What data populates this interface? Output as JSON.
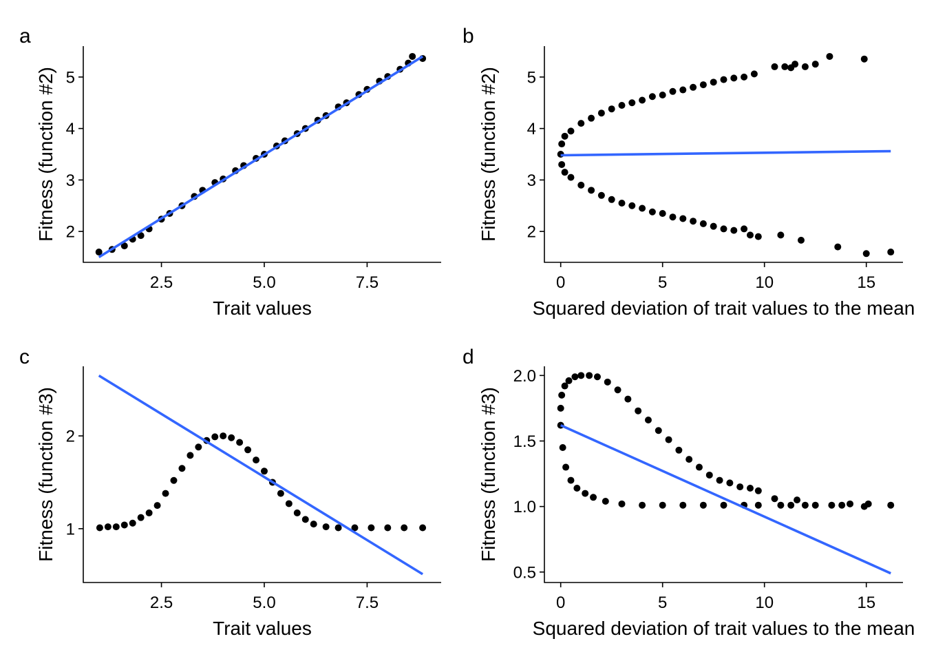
{
  "figure": {
    "colors": {
      "points": "#000000",
      "fit_line": "#3366FF",
      "background": "#FFFFFF"
    }
  },
  "chart_data": [
    {
      "panel": "a",
      "type": "scatter",
      "title": "",
      "xlabel": "Trait values",
      "ylabel": "Fitness (function #2)",
      "xlim": [
        0.6,
        9.3
      ],
      "ylim": [
        1.4,
        5.6
      ],
      "xticks": [
        2.5,
        5.0,
        7.5
      ],
      "xtick_labels": [
        "2.5",
        "5.0",
        "7.5"
      ],
      "yticks": [
        2,
        3,
        4,
        5
      ],
      "ytick_labels": [
        "2",
        "3",
        "4",
        "5"
      ],
      "grid": false,
      "points": [
        [
          0.98,
          1.6
        ],
        [
          1.3,
          1.65
        ],
        [
          1.6,
          1.72
        ],
        [
          1.8,
          1.85
        ],
        [
          2.0,
          1.92
        ],
        [
          2.2,
          2.05
        ],
        [
          2.5,
          2.24
        ],
        [
          2.7,
          2.35
        ],
        [
          3.0,
          2.5
        ],
        [
          3.3,
          2.68
        ],
        [
          3.5,
          2.8
        ],
        [
          3.8,
          2.95
        ],
        [
          4.0,
          3.02
        ],
        [
          4.3,
          3.18
        ],
        [
          4.5,
          3.28
        ],
        [
          4.8,
          3.42
        ],
        [
          5.0,
          3.5
        ],
        [
          5.3,
          3.66
        ],
        [
          5.5,
          3.76
        ],
        [
          5.8,
          3.9
        ],
        [
          6.0,
          4.0
        ],
        [
          6.3,
          4.16
        ],
        [
          6.5,
          4.25
        ],
        [
          6.8,
          4.42
        ],
        [
          7.0,
          4.5
        ],
        [
          7.3,
          4.66
        ],
        [
          7.5,
          4.76
        ],
        [
          7.8,
          4.92
        ],
        [
          8.0,
          5.01
        ],
        [
          8.3,
          5.15
        ],
        [
          8.5,
          5.27
        ],
        [
          8.6,
          5.4
        ],
        [
          8.85,
          5.36
        ]
      ],
      "fit_line": {
        "x": [
          0.98,
          8.85
        ],
        "y": [
          1.5,
          5.4
        ]
      }
    },
    {
      "panel": "b",
      "type": "scatter",
      "title": "",
      "xlabel": "Squared deviation of trait values to the mean",
      "ylabel": "Fitness (function #2)",
      "xlim": [
        -0.8,
        16.8
      ],
      "ylim": [
        1.4,
        5.6
      ],
      "xticks": [
        0,
        5,
        10,
        15
      ],
      "xtick_labels": [
        "0",
        "5",
        "10",
        "15"
      ],
      "yticks": [
        2,
        3,
        4,
        5
      ],
      "ytick_labels": [
        "2",
        "3",
        "4",
        "5"
      ],
      "grid": false,
      "points": [
        [
          0.0,
          3.5
        ],
        [
          0.05,
          3.7
        ],
        [
          0.05,
          3.3
        ],
        [
          0.2,
          3.85
        ],
        [
          0.2,
          3.15
        ],
        [
          0.5,
          3.95
        ],
        [
          0.5,
          3.05
        ],
        [
          1.0,
          4.1
        ],
        [
          1.0,
          2.9
        ],
        [
          1.5,
          4.2
        ],
        [
          1.5,
          2.8
        ],
        [
          2.0,
          4.3
        ],
        [
          2.0,
          2.7
        ],
        [
          2.5,
          4.38
        ],
        [
          2.5,
          2.62
        ],
        [
          3.0,
          4.45
        ],
        [
          3.0,
          2.55
        ],
        [
          3.5,
          4.5
        ],
        [
          3.5,
          2.5
        ],
        [
          4.0,
          4.55
        ],
        [
          4.0,
          2.45
        ],
        [
          4.5,
          4.62
        ],
        [
          4.5,
          2.38
        ],
        [
          5.0,
          4.65
        ],
        [
          5.0,
          2.35
        ],
        [
          5.5,
          4.72
        ],
        [
          5.5,
          2.28
        ],
        [
          6.0,
          4.75
        ],
        [
          6.0,
          2.25
        ],
        [
          6.5,
          4.8
        ],
        [
          6.5,
          2.2
        ],
        [
          7.0,
          4.85
        ],
        [
          7.0,
          2.15
        ],
        [
          7.5,
          4.9
        ],
        [
          7.5,
          2.1
        ],
        [
          8.0,
          4.95
        ],
        [
          8.0,
          2.05
        ],
        [
          8.5,
          4.98
        ],
        [
          8.5,
          2.02
        ],
        [
          9.0,
          5.0
        ],
        [
          9.0,
          2.05
        ],
        [
          9.5,
          5.06
        ],
        [
          9.3,
          1.93
        ],
        [
          9.7,
          1.9
        ],
        [
          10.5,
          5.2
        ],
        [
          11.0,
          5.2
        ],
        [
          11.3,
          5.18
        ],
        [
          11.5,
          5.25
        ],
        [
          12.0,
          5.2
        ],
        [
          12.5,
          5.25
        ],
        [
          13.2,
          5.4
        ],
        [
          10.8,
          1.93
        ],
        [
          11.8,
          1.83
        ],
        [
          13.6,
          1.7
        ],
        [
          14.9,
          5.35
        ],
        [
          15.0,
          1.57
        ],
        [
          16.2,
          1.6
        ]
      ],
      "fit_line": {
        "x": [
          0.0,
          16.2
        ],
        "y": [
          3.48,
          3.56
        ]
      }
    },
    {
      "panel": "c",
      "type": "scatter",
      "title": "",
      "xlabel": "Trait values",
      "ylabel": "Fitness (function #3)",
      "xlim": [
        0.6,
        9.3
      ],
      "ylim": [
        0.42,
        2.75
      ],
      "xticks": [
        2.5,
        5.0,
        7.5
      ],
      "xtick_labels": [
        "2.5",
        "5.0",
        "7.5"
      ],
      "yticks": [
        1,
        2
      ],
      "ytick_labels": [
        "1",
        "2"
      ],
      "grid": false,
      "points": [
        [
          1.0,
          1.01
        ],
        [
          1.2,
          1.02
        ],
        [
          1.4,
          1.02
        ],
        [
          1.6,
          1.04
        ],
        [
          1.8,
          1.06
        ],
        [
          2.0,
          1.12
        ],
        [
          2.2,
          1.17
        ],
        [
          2.4,
          1.25
        ],
        [
          2.6,
          1.38
        ],
        [
          2.8,
          1.52
        ],
        [
          3.0,
          1.65
        ],
        [
          3.2,
          1.79
        ],
        [
          3.4,
          1.88
        ],
        [
          3.6,
          1.95
        ],
        [
          3.8,
          1.99
        ],
        [
          4.0,
          2.0
        ],
        [
          4.2,
          1.98
        ],
        [
          4.4,
          1.93
        ],
        [
          4.6,
          1.85
        ],
        [
          4.8,
          1.74
        ],
        [
          5.0,
          1.62
        ],
        [
          5.2,
          1.5
        ],
        [
          5.4,
          1.38
        ],
        [
          5.6,
          1.27
        ],
        [
          5.8,
          1.17
        ],
        [
          6.0,
          1.1
        ],
        [
          6.2,
          1.05
        ],
        [
          6.5,
          1.02
        ],
        [
          6.8,
          1.01
        ],
        [
          7.2,
          1.01
        ],
        [
          7.6,
          1.01
        ],
        [
          8.0,
          1.01
        ],
        [
          8.4,
          1.01
        ],
        [
          8.85,
          1.01
        ]
      ],
      "fit_line": {
        "x": [
          0.98,
          8.85
        ],
        "y": [
          2.65,
          0.51
        ]
      }
    },
    {
      "panel": "d",
      "type": "scatter",
      "title": "",
      "xlabel": "Squared deviation of trait values to the mean",
      "ylabel": "Fitness (function #3)",
      "xlim": [
        -0.8,
        16.8
      ],
      "ylim": [
        0.42,
        2.07
      ],
      "xticks": [
        0,
        5,
        10,
        15
      ],
      "xtick_labels": [
        "0",
        "5",
        "10",
        "15"
      ],
      "yticks": [
        0.5,
        1.0,
        1.5,
        2.0
      ],
      "ytick_labels": [
        "0.5",
        "1.0",
        "1.5",
        "2.0"
      ],
      "grid": false,
      "points": [
        [
          0.0,
          1.62
        ],
        [
          0.0,
          1.75
        ],
        [
          0.05,
          1.85
        ],
        [
          0.1,
          1.45
        ],
        [
          0.2,
          1.92
        ],
        [
          0.25,
          1.3
        ],
        [
          0.4,
          1.96
        ],
        [
          0.5,
          1.2
        ],
        [
          0.7,
          1.99
        ],
        [
          0.8,
          1.14
        ],
        [
          1.0,
          2.0
        ],
        [
          1.2,
          1.1
        ],
        [
          1.4,
          2.0
        ],
        [
          1.6,
          1.07
        ],
        [
          1.8,
          1.99
        ],
        [
          2.2,
          1.04
        ],
        [
          2.3,
          1.95
        ],
        [
          2.8,
          1.89
        ],
        [
          3.0,
          1.02
        ],
        [
          3.3,
          1.82
        ],
        [
          3.8,
          1.73
        ],
        [
          4.0,
          1.01
        ],
        [
          4.3,
          1.66
        ],
        [
          4.8,
          1.58
        ],
        [
          5.0,
          1.01
        ],
        [
          5.3,
          1.51
        ],
        [
          5.8,
          1.43
        ],
        [
          6.0,
          1.01
        ],
        [
          6.3,
          1.36
        ],
        [
          6.8,
          1.3
        ],
        [
          7.0,
          1.01
        ],
        [
          7.3,
          1.24
        ],
        [
          7.8,
          1.2
        ],
        [
          8.0,
          1.01
        ],
        [
          8.3,
          1.18
        ],
        [
          8.8,
          1.15
        ],
        [
          9.0,
          1.01
        ],
        [
          9.3,
          1.14
        ],
        [
          9.7,
          1.12
        ],
        [
          9.7,
          1.01
        ],
        [
          10.5,
          1.06
        ],
        [
          10.8,
          1.01
        ],
        [
          11.3,
          1.01
        ],
        [
          11.6,
          1.05
        ],
        [
          12.0,
          1.01
        ],
        [
          12.5,
          1.01
        ],
        [
          13.3,
          1.01
        ],
        [
          13.8,
          1.01
        ],
        [
          14.2,
          1.02
        ],
        [
          14.9,
          1.0
        ],
        [
          15.1,
          1.02
        ],
        [
          16.2,
          1.01
        ]
      ],
      "fit_line": {
        "x": [
          0.0,
          16.2
        ],
        "y": [
          1.62,
          0.49
        ]
      }
    }
  ],
  "panels": {
    "a": {
      "tag": "a"
    },
    "b": {
      "tag": "b"
    },
    "c": {
      "tag": "c"
    },
    "d": {
      "tag": "d"
    }
  }
}
